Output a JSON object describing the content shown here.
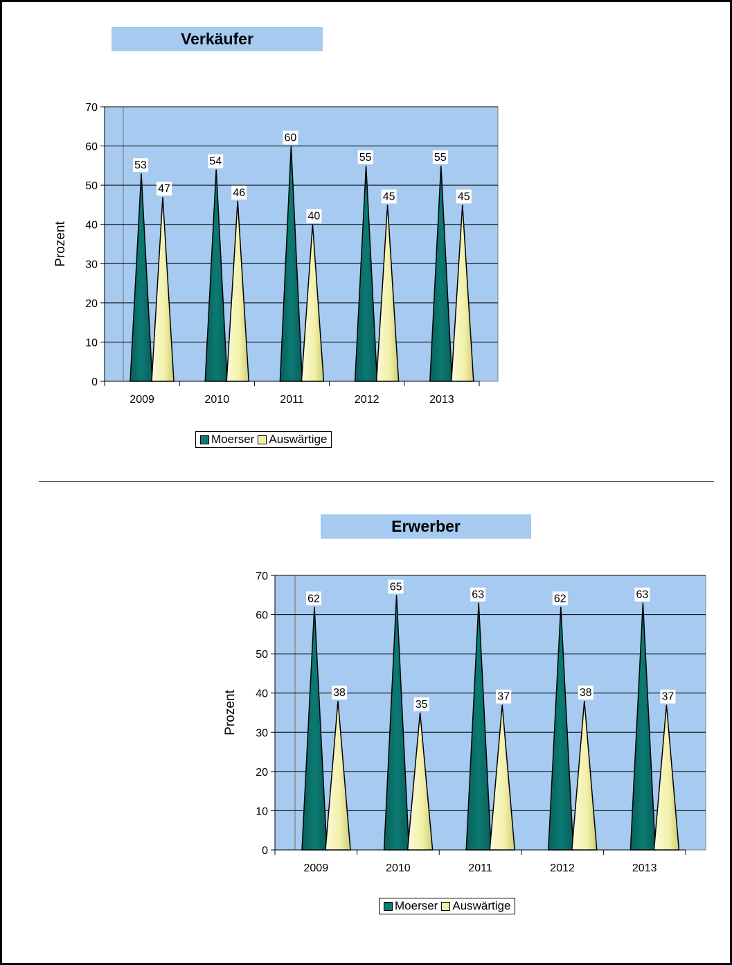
{
  "colors": {
    "plot_bg": "#a6caf0",
    "moerser": "#0b7a73",
    "auswaertige": "#f2f0a8",
    "gridline": "#000000"
  },
  "chart_data": [
    {
      "type": "bar",
      "mark": "cone",
      "title": "Verkäufer",
      "xlabel": "",
      "ylabel": "Prozent",
      "categories": [
        "2009",
        "2010",
        "2011",
        "2012",
        "2013"
      ],
      "ylim": [
        0,
        70
      ],
      "yticks": [
        0,
        10,
        20,
        30,
        40,
        50,
        60,
        70
      ],
      "grid": true,
      "legend": "bottom",
      "series": [
        {
          "name": "Moerser",
          "values": [
            53,
            54,
            60,
            55,
            55
          ]
        },
        {
          "name": "Auswärtige",
          "values": [
            47,
            46,
            40,
            45,
            45
          ]
        }
      ]
    },
    {
      "type": "bar",
      "mark": "cone",
      "title": "Erwerber",
      "xlabel": "",
      "ylabel": "Prozent",
      "categories": [
        "2009",
        "2010",
        "2011",
        "2012",
        "2013"
      ],
      "ylim": [
        0,
        70
      ],
      "yticks": [
        0,
        10,
        20,
        30,
        40,
        50,
        60,
        70
      ],
      "grid": true,
      "legend": "bottom",
      "series": [
        {
          "name": "Moerser",
          "values": [
            62,
            65,
            63,
            62,
            63
          ]
        },
        {
          "name": "Auswärtige",
          "values": [
            38,
            35,
            37,
            38,
            37
          ]
        }
      ]
    }
  ]
}
